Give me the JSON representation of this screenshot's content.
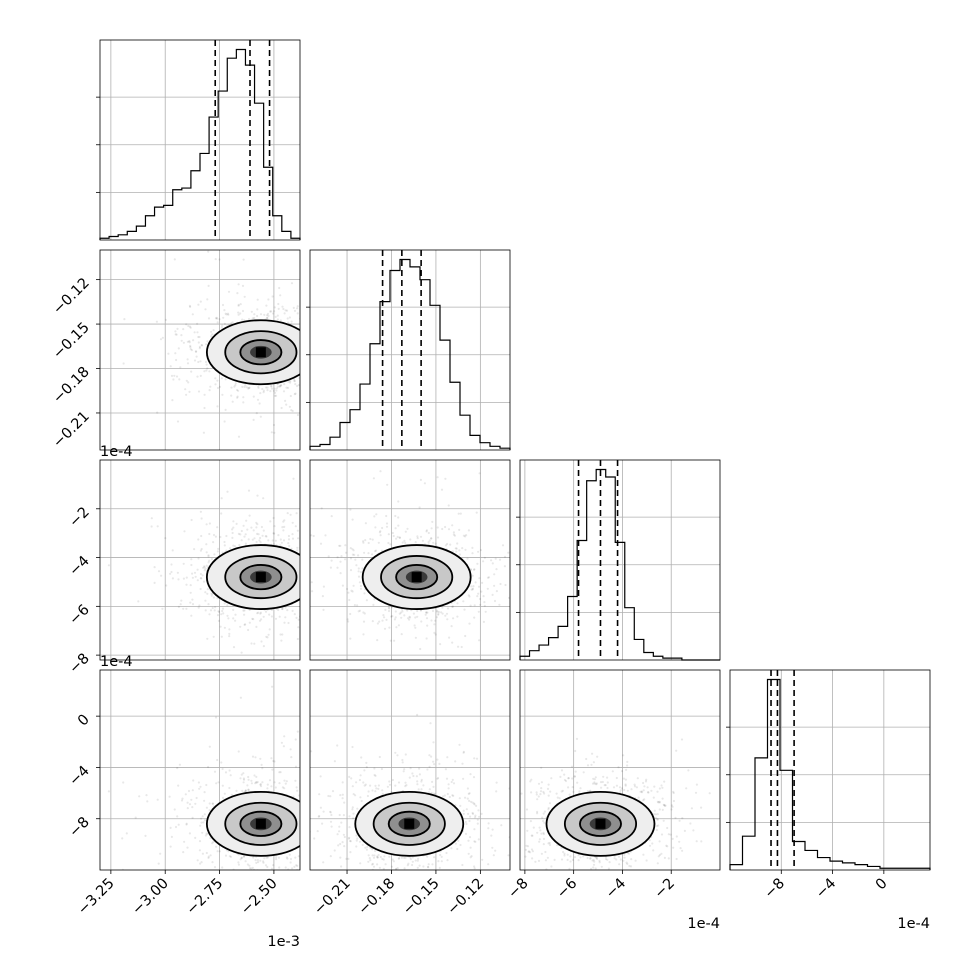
{
  "chart_data": {
    "type": "corner",
    "grid": true,
    "parameters": [
      {
        "index": 0,
        "scale_label": "1e-3",
        "range": [
          -3.3,
          -2.38
        ],
        "ticks": [
          -3.25,
          -3.0,
          -2.75,
          -2.5
        ],
        "tick_labels": [
          "−3.25",
          "−3.00",
          "−2.75",
          "−2.50"
        ],
        "quantiles": [
          -2.77,
          -2.61,
          -2.52
        ]
      },
      {
        "index": 1,
        "scale_label": "",
        "range": [
          -0.235,
          -0.1
        ],
        "ticks": [
          -0.21,
          -0.18,
          -0.15,
          -0.12
        ],
        "tick_labels": [
          "−0.21",
          "−0.18",
          "−0.15",
          "−0.12"
        ],
        "quantiles": [
          -0.186,
          -0.173,
          -0.16
        ]
      },
      {
        "index": 2,
        "scale_label": "1e-4",
        "range": [
          -8.2,
          0.0
        ],
        "ticks": [
          -8,
          -6,
          -4,
          -2
        ],
        "tick_labels": [
          "−8",
          "−6",
          "−4",
          "−2"
        ],
        "quantiles": [
          -5.8,
          -4.9,
          -4.2
        ]
      },
      {
        "index": 3,
        "scale_label": "1e-4",
        "range": [
          -12.0,
          3.6
        ],
        "ticks": [
          -8,
          -4,
          0
        ],
        "tick_labels": [
          "−8",
          "−4",
          "0"
        ],
        "quantiles": [
          -8.8,
          -8.3,
          -7.0
        ]
      }
    ],
    "histograms": [
      [
        1,
        2,
        3,
        5,
        8,
        14,
        19,
        20,
        29,
        30,
        40,
        50,
        71,
        86,
        105,
        110,
        101,
        79,
        42,
        14,
        5,
        1
      ],
      [
        2,
        3,
        7,
        15,
        22,
        36,
        58,
        81,
        98,
        104,
        100,
        93,
        79,
        60,
        37,
        19,
        8,
        4,
        2,
        1
      ],
      [
        2,
        5,
        8,
        12,
        18,
        34,
        64,
        96,
        102,
        98,
        63,
        28,
        11,
        4,
        2,
        1,
        1,
        0,
        0,
        0,
        0
      ],
      [
        3,
        19,
        63,
        107,
        56,
        16,
        11,
        7,
        5,
        4,
        3,
        2,
        1,
        1,
        1,
        1
      ]
    ],
    "joint_modes": [
      {
        "row": 1,
        "col": 0,
        "x": -2.56,
        "y": -0.169
      },
      {
        "row": 2,
        "col": 0,
        "x": -2.56,
        "y": -4.8
      },
      {
        "row": 2,
        "col": 1,
        "x": -0.163,
        "y": -4.8
      },
      {
        "row": 3,
        "col": 0,
        "x": -2.56,
        "y": -8.4
      },
      {
        "row": 3,
        "col": 1,
        "x": -0.168,
        "y": -8.4
      },
      {
        "row": 3,
        "col": 2,
        "x": -4.9,
        "y": -8.4
      }
    ]
  }
}
